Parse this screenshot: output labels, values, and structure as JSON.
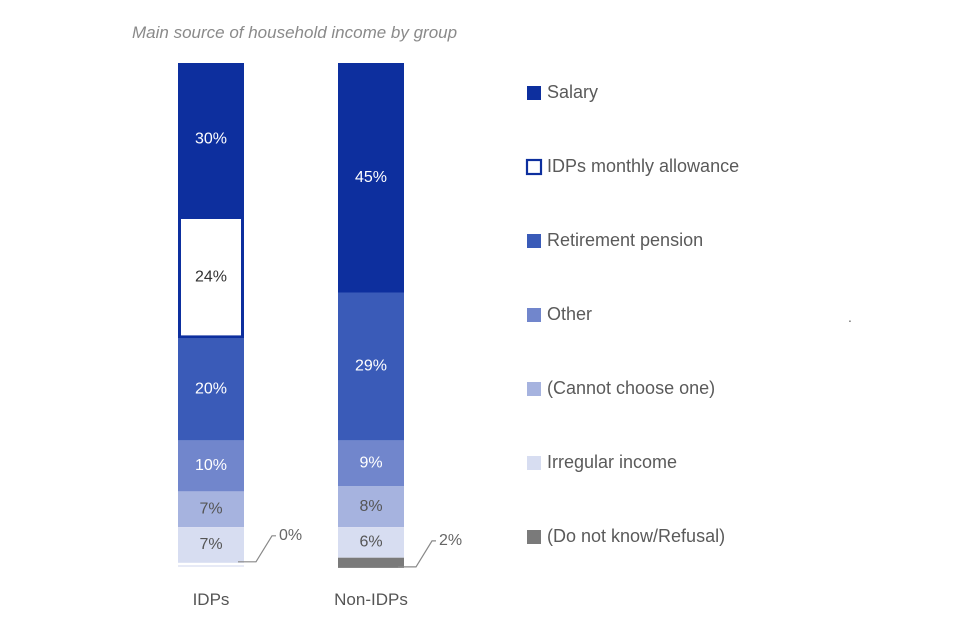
{
  "chart_data": {
    "type": "bar",
    "stacked": true,
    "title": "Main source of household income by group",
    "categories": [
      "IDPs",
      "Non-IDPs"
    ],
    "series": [
      {
        "name": "Salary",
        "values": [
          30,
          45
        ],
        "color": "#0d2f9e"
      },
      {
        "name": "IDPs monthly allowance",
        "values": [
          24,
          0
        ],
        "color": "#ffffff",
        "stroke": "#0d2f9e"
      },
      {
        "name": "Retirement pension",
        "values": [
          20,
          29
        ],
        "color": "#3a5bb8"
      },
      {
        "name": "Other",
        "values": [
          10,
          9
        ],
        "color": "#7186cc"
      },
      {
        "name": "(Cannot choose one)",
        "values": [
          7,
          8
        ],
        "color": "#a6b3df"
      },
      {
        "name": "Irregular income",
        "values": [
          7,
          6
        ],
        "color": "#d7ddf1"
      },
      {
        "name": "(Do not know/Refusal)",
        "values": [
          0,
          2
        ],
        "color": "#7a7a7a"
      }
    ],
    "data_labels": [
      [
        "30%",
        "45%"
      ],
      [
        "24%",
        ""
      ],
      [
        "20%",
        "29%"
      ],
      [
        "10%",
        "9%"
      ],
      [
        "7%",
        "8%"
      ],
      [
        "7%",
        "6%"
      ],
      [
        "0%",
        "2%"
      ]
    ],
    "legend_position": "right",
    "grid": false,
    "axes_visible": false
  },
  "extra_mark": "."
}
